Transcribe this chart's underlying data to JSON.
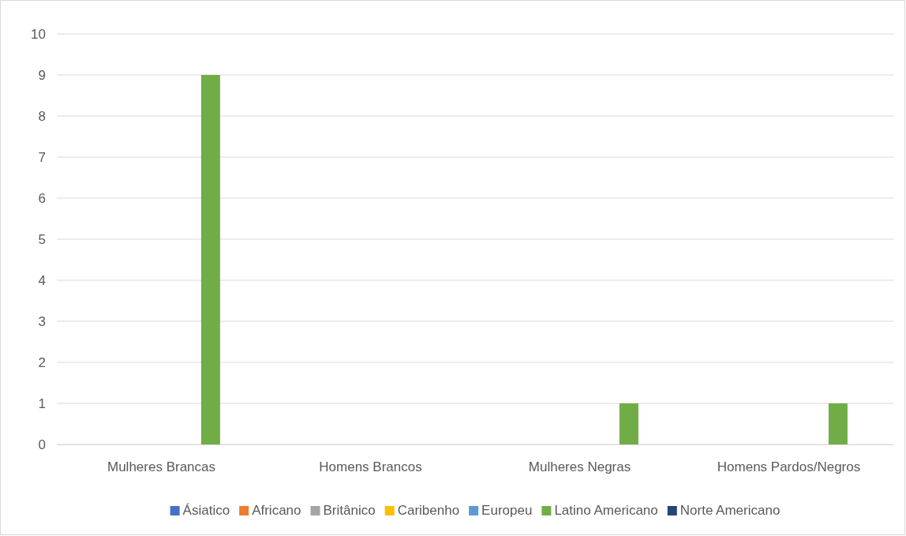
{
  "chart_data": {
    "type": "bar",
    "categories": [
      "Mulheres Brancas",
      "Homens Brancos",
      "Mulheres Negras",
      "Homens Pardos/Negros"
    ],
    "series": [
      {
        "name": "Ásiatico",
        "color": "#4472c4",
        "values": [
          0,
          0,
          0,
          0
        ]
      },
      {
        "name": "Africano",
        "color": "#ed7d31",
        "values": [
          0,
          0,
          0,
          0
        ]
      },
      {
        "name": "Britânico",
        "color": "#a5a5a5",
        "values": [
          0,
          0,
          0,
          0
        ]
      },
      {
        "name": "Caribenho",
        "color": "#ffc000",
        "values": [
          0,
          0,
          0,
          0
        ]
      },
      {
        "name": "Europeu",
        "color": "#5b9bd5",
        "values": [
          0,
          0,
          0,
          0
        ]
      },
      {
        "name": "Latino Americano",
        "color": "#70ad47",
        "values": [
          9,
          0,
          1,
          1
        ]
      },
      {
        "name": "Norte Americano",
        "color": "#264478",
        "values": [
          0,
          0,
          0,
          0
        ]
      }
    ],
    "ylim": [
      0,
      10
    ],
    "yticks": [
      0,
      1,
      2,
      3,
      4,
      5,
      6,
      7,
      8,
      9,
      10
    ],
    "grid": "y",
    "legend": "bottom"
  }
}
